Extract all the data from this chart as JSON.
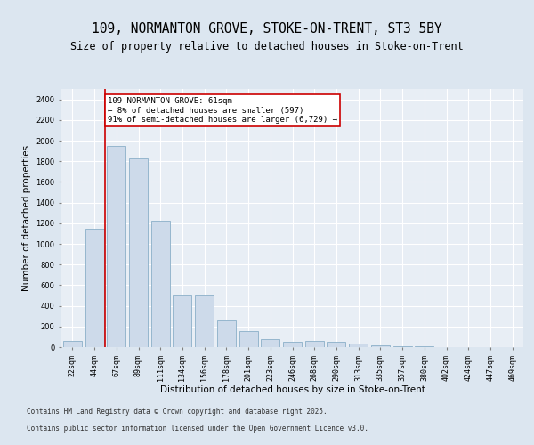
{
  "title1": "109, NORMANTON GROVE, STOKE-ON-TRENT, ST3 5BY",
  "title2": "Size of property relative to detached houses in Stoke-on-Trent",
  "xlabel": "Distribution of detached houses by size in Stoke-on-Trent",
  "ylabel": "Number of detached properties",
  "categories": [
    "22sqm",
    "44sqm",
    "67sqm",
    "89sqm",
    "111sqm",
    "134sqm",
    "156sqm",
    "178sqm",
    "201sqm",
    "223sqm",
    "246sqm",
    "268sqm",
    "290sqm",
    "313sqm",
    "335sqm",
    "357sqm",
    "380sqm",
    "402sqm",
    "424sqm",
    "447sqm",
    "469sqm"
  ],
  "values": [
    60,
    1150,
    1950,
    1830,
    1220,
    500,
    500,
    260,
    155,
    80,
    55,
    60,
    55,
    35,
    15,
    10,
    5,
    2,
    1,
    1,
    1
  ],
  "bar_color": "#cddaea",
  "bar_edge_color": "#8aafc8",
  "annotation_text": "109 NORMANTON GROVE: 61sqm\n← 8% of detached houses are smaller (597)\n91% of semi-detached houses are larger (6,729) →",
  "annotation_box_color": "white",
  "annotation_box_edge_color": "#cc0000",
  "vline_color": "#cc0000",
  "ylim": [
    0,
    2500
  ],
  "yticks": [
    0,
    200,
    400,
    600,
    800,
    1000,
    1200,
    1400,
    1600,
    1800,
    2000,
    2200,
    2400
  ],
  "bg_color": "#dce6f0",
  "plot_bg_color": "#e8eef5",
  "grid_color": "white",
  "footer1": "Contains HM Land Registry data © Crown copyright and database right 2025.",
  "footer2": "Contains public sector information licensed under the Open Government Licence v3.0.",
  "title_fontsize": 10.5,
  "subtitle_fontsize": 8.5,
  "tick_fontsize": 6,
  "ylabel_fontsize": 7.5,
  "xlabel_fontsize": 7.5,
  "annotation_fontsize": 6.5,
  "footer_fontsize": 5.5
}
